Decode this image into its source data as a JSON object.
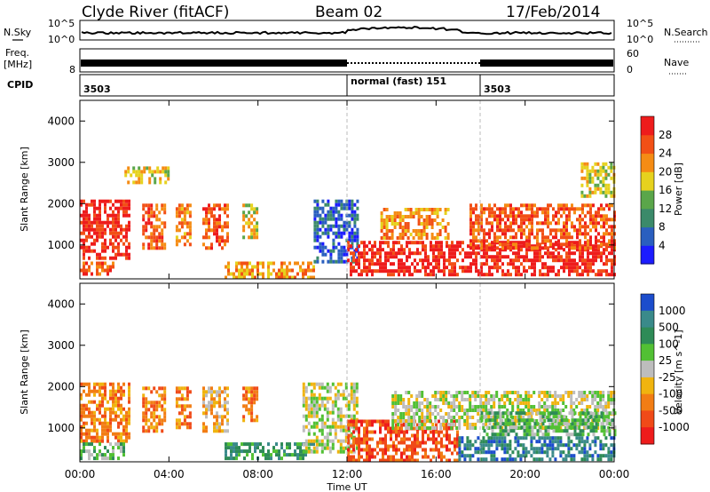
{
  "header": {
    "station": "Clyde River (fitACF)",
    "beam": "Beam 02",
    "date": "17/Feb/2014"
  },
  "noise_panel": {
    "left_label": "N.Sky",
    "right_label": "N.Search",
    "y_ticks": [
      "10^5",
      "10^0"
    ]
  },
  "freq_panel": {
    "left_label_1": "Freq.",
    "left_label_2": "[MHz]",
    "left_tick": "8",
    "right_label": "Nave",
    "right_ticks": [
      "60",
      "0"
    ]
  },
  "cpid": {
    "label": "CPID",
    "segments": [
      {
        "start_hour": 0,
        "text": "3503"
      },
      {
        "start_hour": 12,
        "text": "normal (fast) 151"
      },
      {
        "start_hour": 18,
        "text": "3503"
      }
    ]
  },
  "chart_data": [
    {
      "type": "heatmap",
      "title": "",
      "xlabel": "Time UT",
      "ylabel": "Slant Range [km]",
      "x_ticks": [
        "00:00",
        "04:00",
        "08:00",
        "12:00",
        "16:00",
        "20:00",
        "00:00"
      ],
      "xlim_hours": [
        0,
        24
      ],
      "y_ticks": [
        1000,
        2000,
        3000,
        4000
      ],
      "ylim": [
        180,
        4500
      ],
      "colorbar": {
        "label": "Power [dB]",
        "ticks": [
          "4",
          "8",
          "12",
          "16",
          "20",
          "24",
          "28"
        ],
        "colors": [
          "#1c1cff",
          "#2a5fbf",
          "#3b8a6a",
          "#5aa64a",
          "#e6d21e",
          "#f58c14",
          "#f25016",
          "#ee1c1c"
        ]
      },
      "echo_regions": [
        {
          "t0": 0.0,
          "t1": 2.2,
          "r0": 700,
          "r1": 2100,
          "class": 7
        },
        {
          "t0": 0.0,
          "t1": 1.5,
          "r0": 300,
          "r1": 600,
          "class": 6
        },
        {
          "t0": 2.8,
          "t1": 3.8,
          "r0": 900,
          "r1": 2000,
          "class": 6
        },
        {
          "t0": 4.3,
          "t1": 4.9,
          "r0": 1000,
          "r1": 2000,
          "class": 5
        },
        {
          "t0": 5.5,
          "t1": 6.6,
          "r0": 900,
          "r1": 2000,
          "class": 6
        },
        {
          "t0": 7.3,
          "t1": 7.9,
          "r0": 1200,
          "r1": 2000,
          "class": 4
        },
        {
          "t0": 2.0,
          "t1": 4.0,
          "r0": 2500,
          "r1": 2900,
          "class": 4
        },
        {
          "t0": 6.5,
          "t1": 10.5,
          "r0": 250,
          "r1": 600,
          "class": 5
        },
        {
          "t0": 10.5,
          "t1": 12.5,
          "r0": 600,
          "r1": 2100,
          "class": 1
        },
        {
          "t0": 12.0,
          "t1": 24.0,
          "r0": 250,
          "r1": 1100,
          "class": 7
        },
        {
          "t0": 13.5,
          "t1": 16.5,
          "r0": 1200,
          "r1": 1900,
          "class": 5
        },
        {
          "t0": 17.5,
          "t1": 24.0,
          "r0": 900,
          "r1": 2000,
          "class": 6
        },
        {
          "t0": 22.5,
          "t1": 24.0,
          "r0": 2200,
          "r1": 3000,
          "class": 4
        }
      ]
    },
    {
      "type": "heatmap",
      "title": "",
      "xlabel": "Time UT",
      "ylabel": "Slant Range [km]",
      "x_ticks": [
        "00:00",
        "04:00",
        "08:00",
        "12:00",
        "16:00",
        "20:00",
        "00:00"
      ],
      "xlim_hours": [
        0,
        24
      ],
      "y_ticks": [
        1000,
        2000,
        3000,
        4000
      ],
      "ylim": [
        180,
        4500
      ],
      "colorbar": {
        "label": "Velocity [m s^-1]",
        "ticks": [
          "1000",
          "500",
          "100",
          "25",
          "-25",
          "-100",
          "-500",
          "-1000"
        ],
        "colors": [
          "#1c4dcc",
          "#3a8a8a",
          "#2e8b57",
          "#52c034",
          "#bdbdbd",
          "#f0b40f",
          "#f27d14",
          "#f04a18",
          "#ee1c1c"
        ]
      },
      "echo_regions": [
        {
          "t0": 0.0,
          "t1": 2.2,
          "r0": 700,
          "r1": 2100,
          "class": 6
        },
        {
          "t0": 0.0,
          "t1": 2.0,
          "r0": 300,
          "r1": 650,
          "class": 3
        },
        {
          "t0": 2.8,
          "t1": 3.8,
          "r0": 900,
          "r1": 2000,
          "class": 6
        },
        {
          "t0": 4.3,
          "t1": 4.9,
          "r0": 1000,
          "r1": 2000,
          "class": 6
        },
        {
          "t0": 5.5,
          "t1": 6.6,
          "r0": 900,
          "r1": 2000,
          "class": 5
        },
        {
          "t0": 7.3,
          "t1": 7.9,
          "r0": 1200,
          "r1": 2000,
          "class": 6
        },
        {
          "t0": 6.5,
          "t1": 10.5,
          "r0": 250,
          "r1": 650,
          "class": 2
        },
        {
          "t0": 10.0,
          "t1": 12.5,
          "r0": 400,
          "r1": 2100,
          "class": 4
        },
        {
          "t0": 12.0,
          "t1": 17.0,
          "r0": 250,
          "r1": 1200,
          "class": 7
        },
        {
          "t0": 17.0,
          "t1": 24.0,
          "r0": 250,
          "r1": 800,
          "class": 1
        },
        {
          "t0": 14.0,
          "t1": 24.0,
          "r0": 1000,
          "r1": 1900,
          "class": 4
        },
        {
          "t0": 18.0,
          "t1": 24.0,
          "r0": 800,
          "r1": 1400,
          "class": 3
        }
      ]
    }
  ]
}
